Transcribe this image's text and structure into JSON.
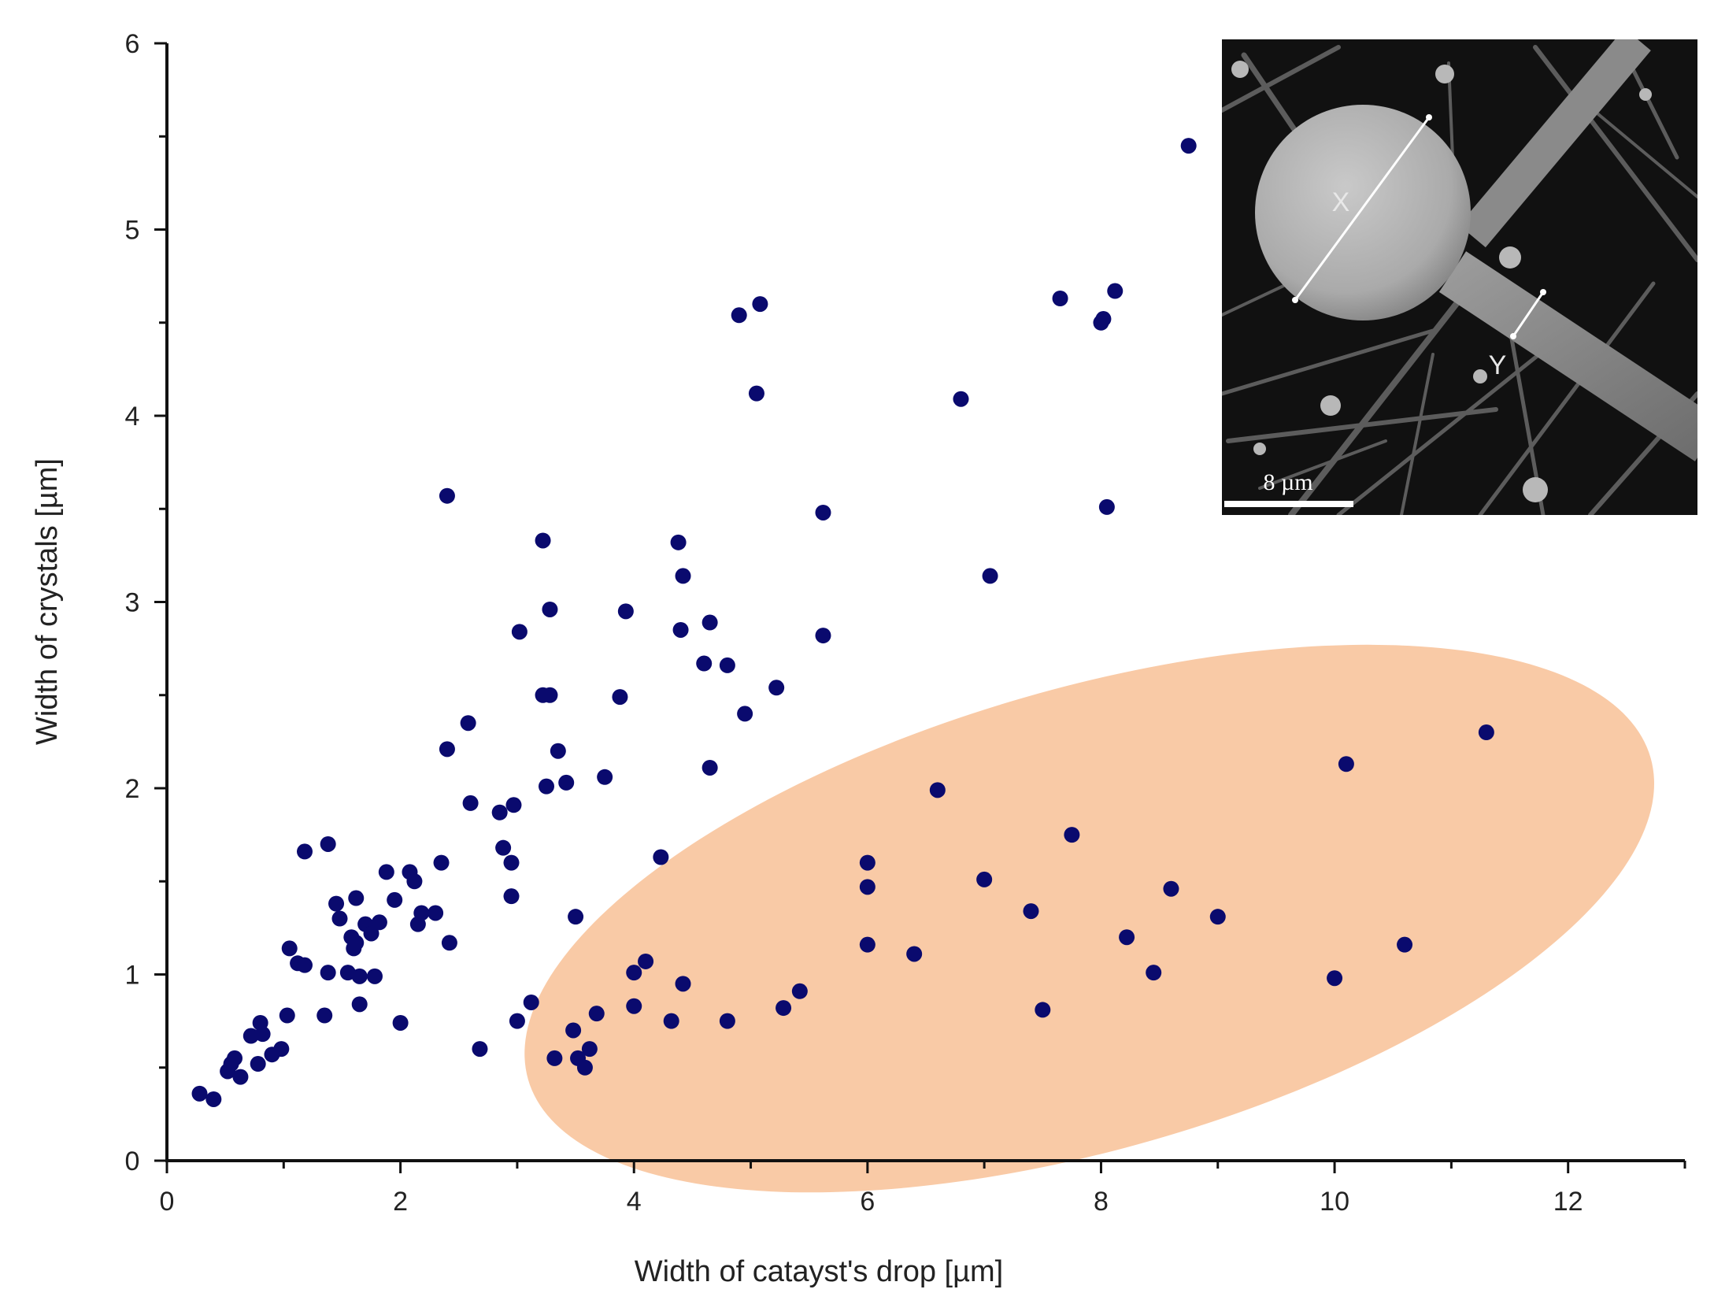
{
  "chart_data": {
    "type": "scatter",
    "xlabel": "Width of catayst's drop [µm]",
    "ylabel": "Width of crystals [µm]",
    "xlim": [
      0,
      13
    ],
    "ylim": [
      0,
      6
    ],
    "xticks": [
      0,
      2,
      4,
      6,
      8,
      10,
      12
    ],
    "yticks": [
      0,
      1,
      2,
      3,
      4,
      5,
      6
    ],
    "grid": false,
    "marker_color": "#0a0a6e",
    "highlight": {
      "shape": "ellipse",
      "color": "#f9caa6",
      "center": [
        7.9,
        1.3
      ],
      "semi_axes": [
        5.0,
        0.55
      ],
      "angle_deg": 16
    },
    "points": [
      [
        0.28,
        0.36
      ],
      [
        0.4,
        0.33
      ],
      [
        0.52,
        0.48
      ],
      [
        0.55,
        0.52
      ],
      [
        0.58,
        0.55
      ],
      [
        0.63,
        0.45
      ],
      [
        0.72,
        0.67
      ],
      [
        0.78,
        0.52
      ],
      [
        0.8,
        0.74
      ],
      [
        0.82,
        0.68
      ],
      [
        0.9,
        0.57
      ],
      [
        0.98,
        0.6
      ],
      [
        1.03,
        0.78
      ],
      [
        1.05,
        1.14
      ],
      [
        1.12,
        1.06
      ],
      [
        1.18,
        1.05
      ],
      [
        1.18,
        1.66
      ],
      [
        1.35,
        0.78
      ],
      [
        1.38,
        1.01
      ],
      [
        1.38,
        1.7
      ],
      [
        1.45,
        1.38
      ],
      [
        1.48,
        1.3
      ],
      [
        1.55,
        1.01
      ],
      [
        1.58,
        1.2
      ],
      [
        1.6,
        1.14
      ],
      [
        1.62,
        1.41
      ],
      [
        1.62,
        1.17
      ],
      [
        1.65,
        0.99
      ],
      [
        1.65,
        0.84
      ],
      [
        1.7,
        1.27
      ],
      [
        1.75,
        1.22
      ],
      [
        1.78,
        0.99
      ],
      [
        1.82,
        1.28
      ],
      [
        1.88,
        1.55
      ],
      [
        1.95,
        1.4
      ],
      [
        2.0,
        0.74
      ],
      [
        2.08,
        1.55
      ],
      [
        2.12,
        1.5
      ],
      [
        2.15,
        1.27
      ],
      [
        2.18,
        1.33
      ],
      [
        2.3,
        1.33
      ],
      [
        2.35,
        1.6
      ],
      [
        2.4,
        3.57
      ],
      [
        2.4,
        2.21
      ],
      [
        2.42,
        1.17
      ],
      [
        2.58,
        2.35
      ],
      [
        2.6,
        1.92
      ],
      [
        2.68,
        0.6
      ],
      [
        2.85,
        1.87
      ],
      [
        2.88,
        1.68
      ],
      [
        2.95,
        1.6
      ],
      [
        2.95,
        1.42
      ],
      [
        2.97,
        1.91
      ],
      [
        3.0,
        0.75
      ],
      [
        3.02,
        2.84
      ],
      [
        3.12,
        0.85
      ],
      [
        3.22,
        3.33
      ],
      [
        3.22,
        2.5
      ],
      [
        3.25,
        2.01
      ],
      [
        3.28,
        2.5
      ],
      [
        3.28,
        2.96
      ],
      [
        3.32,
        0.55
      ],
      [
        3.35,
        2.2
      ],
      [
        3.42,
        2.03
      ],
      [
        3.48,
        0.7
      ],
      [
        3.5,
        1.31
      ],
      [
        3.52,
        0.55
      ],
      [
        3.58,
        0.5
      ],
      [
        3.62,
        0.6
      ],
      [
        3.68,
        0.79
      ],
      [
        3.75,
        2.06
      ],
      [
        3.88,
        2.49
      ],
      [
        3.93,
        2.95
      ],
      [
        4.0,
        1.01
      ],
      [
        4.0,
        0.83
      ],
      [
        4.1,
        1.07
      ],
      [
        4.23,
        1.63
      ],
      [
        4.32,
        0.75
      ],
      [
        4.38,
        3.32
      ],
      [
        4.4,
        2.85
      ],
      [
        4.42,
        0.95
      ],
      [
        4.42,
        3.14
      ],
      [
        4.6,
        2.67
      ],
      [
        4.65,
        2.11
      ],
      [
        4.65,
        2.89
      ],
      [
        4.8,
        0.75
      ],
      [
        4.8,
        2.66
      ],
      [
        4.9,
        4.54
      ],
      [
        4.95,
        2.4
      ],
      [
        5.05,
        4.12
      ],
      [
        5.08,
        4.6
      ],
      [
        5.22,
        2.54
      ],
      [
        5.28,
        0.82
      ],
      [
        5.42,
        0.91
      ],
      [
        5.62,
        3.48
      ],
      [
        5.62,
        2.82
      ],
      [
        6.0,
        1.6
      ],
      [
        6.0,
        1.47
      ],
      [
        6.0,
        1.16
      ],
      [
        6.4,
        1.11
      ],
      [
        6.6,
        1.99
      ],
      [
        6.8,
        4.09
      ],
      [
        7.0,
        1.51
      ],
      [
        7.05,
        3.14
      ],
      [
        7.4,
        1.34
      ],
      [
        7.5,
        0.81
      ],
      [
        7.65,
        4.63
      ],
      [
        7.75,
        1.75
      ],
      [
        8.0,
        4.5
      ],
      [
        8.02,
        4.52
      ],
      [
        8.05,
        3.51
      ],
      [
        8.12,
        4.67
      ],
      [
        8.22,
        1.2
      ],
      [
        8.45,
        1.01
      ],
      [
        8.6,
        1.46
      ],
      [
        8.75,
        5.45
      ],
      [
        9.0,
        1.31
      ],
      [
        10.0,
        0.98
      ],
      [
        10.1,
        2.13
      ],
      [
        10.6,
        1.16
      ],
      [
        11.3,
        2.3
      ]
    ]
  },
  "inset": {
    "label_x": "X",
    "label_y": "Y",
    "scale_bar": "8 µm"
  }
}
